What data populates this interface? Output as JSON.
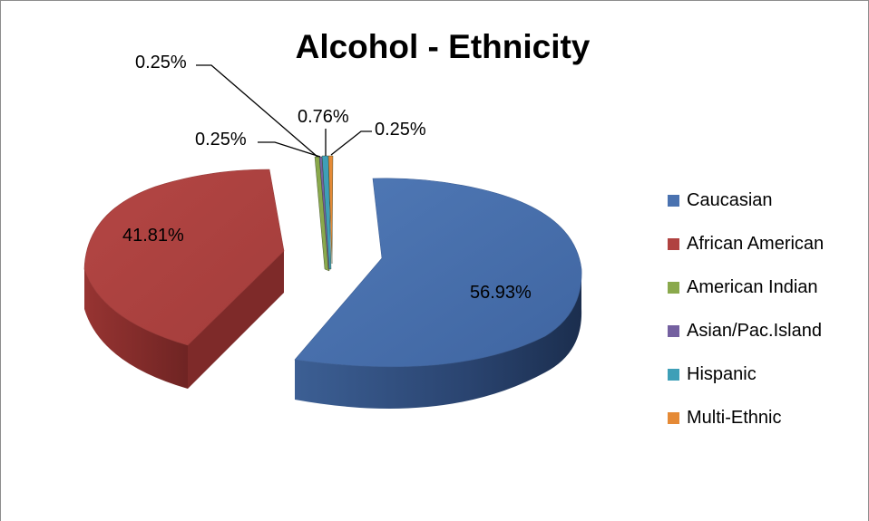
{
  "chart_data": {
    "type": "pie",
    "title": "Alcohol - Ethnicity",
    "categories": [
      "Caucasian",
      "African American",
      "American Indian",
      "Asian/Pac.Island",
      "Hispanic",
      "Multi-Ethnic"
    ],
    "values": [
      56.93,
      41.81,
      0.25,
      0.25,
      0.76,
      0.25
    ],
    "value_labels": [
      "56.93%",
      "41.81%",
      "0.25%",
      "0.25%",
      "0.76%",
      "0.25%"
    ],
    "colors": [
      "#4a72b0",
      "#b04240",
      "#8aa94c",
      "#7460a0",
      "#3e9fb7",
      "#e58a36"
    ],
    "legend_position": "right",
    "exploded": true,
    "three_d": true
  }
}
